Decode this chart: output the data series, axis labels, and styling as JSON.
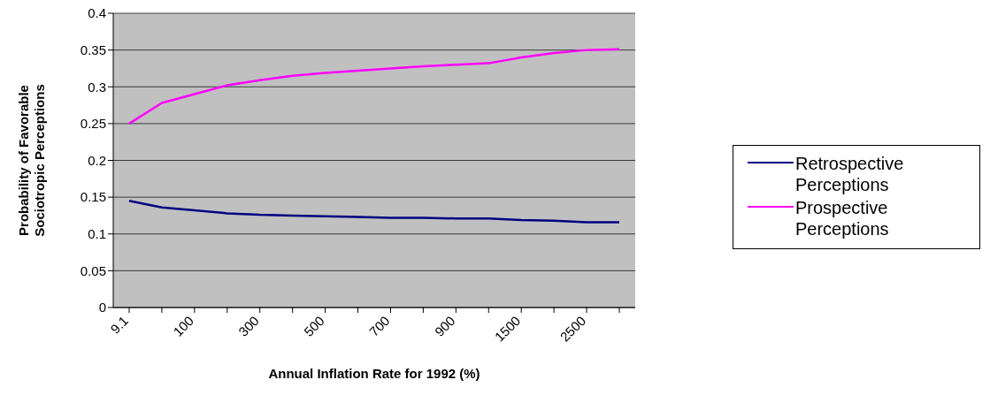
{
  "chart_data": {
    "type": "line",
    "xlabel": "Annual Inflation Rate for 1992 (%)",
    "ylabel": "Probability of Favorable Sociotropic Perceptions",
    "categories": [
      "9.1",
      null,
      "100",
      null,
      "300",
      null,
      "500",
      null,
      "700",
      null,
      "900",
      null,
      "1500",
      null,
      "2500",
      null
    ],
    "series": [
      {
        "name": "Retrospective Perceptions",
        "color": "#000080",
        "values": [
          0.145,
          0.136,
          0.132,
          0.128,
          0.126,
          0.125,
          0.124,
          0.123,
          0.122,
          0.122,
          0.121,
          0.121,
          0.119,
          0.118,
          0.116,
          0.116
        ]
      },
      {
        "name": "Prospective Perceptions",
        "color": "#ff00ff",
        "values": [
          0.25,
          0.278,
          0.29,
          0.302,
          0.309,
          0.315,
          0.319,
          0.322,
          0.325,
          0.328,
          0.33,
          0.332,
          0.34,
          0.346,
          0.35,
          0.351
        ]
      }
    ],
    "ylim": [
      0,
      0.4
    ],
    "yticks": [
      0,
      0.05,
      0.1,
      0.15,
      0.2,
      0.25,
      0.3,
      0.35,
      0.4
    ],
    "grid": "y",
    "legend": "right",
    "marker": "none",
    "line_style": "solid"
  }
}
